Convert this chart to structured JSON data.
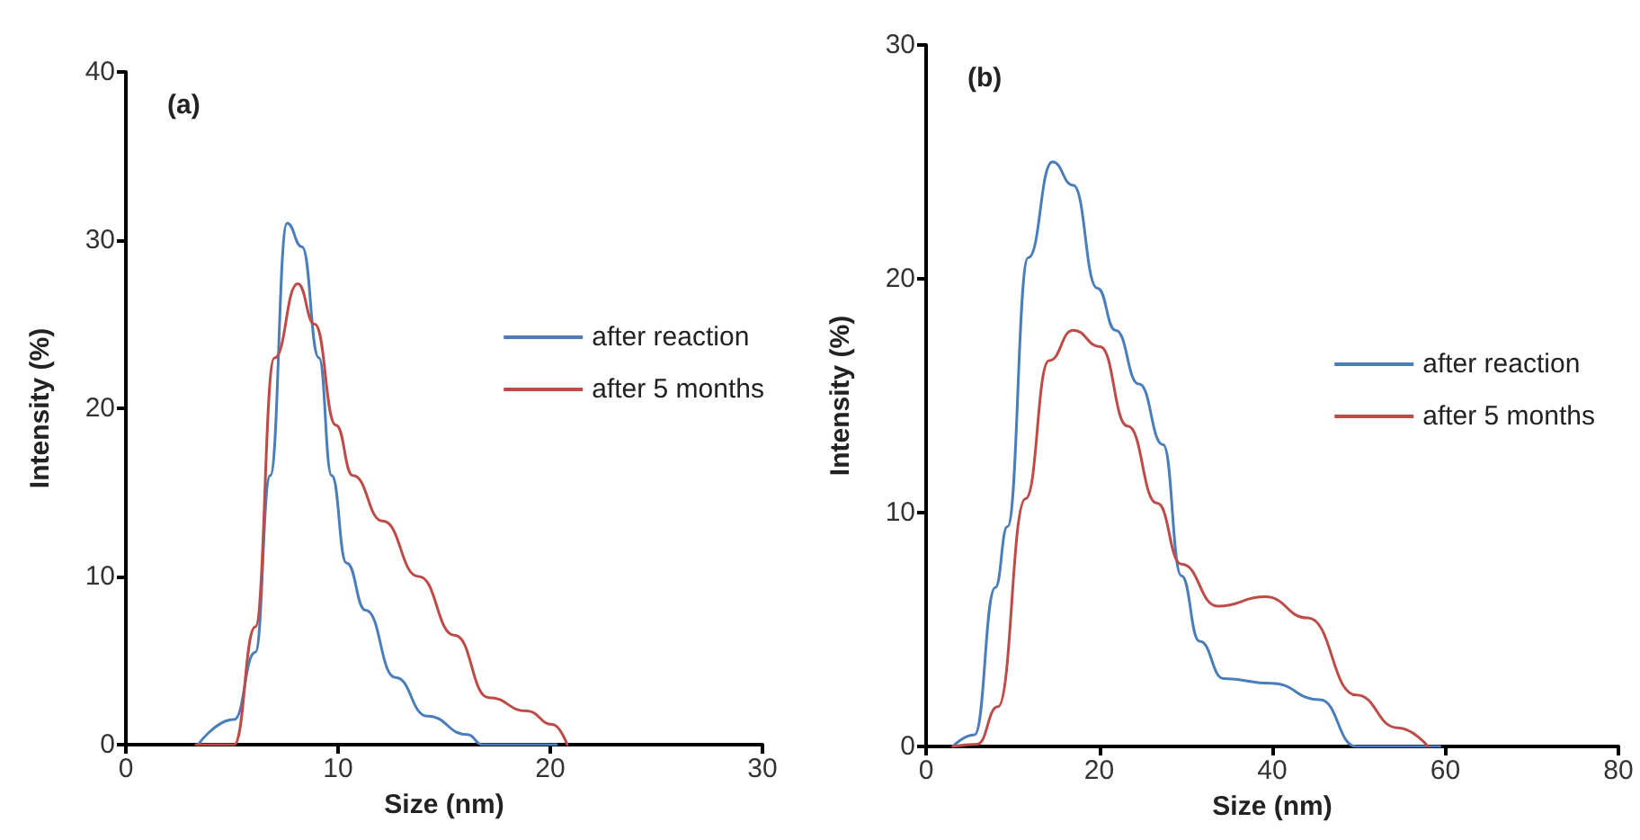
{
  "chart_data": [
    {
      "type": "line",
      "title": "(a)",
      "xlabel": "Size (nm)",
      "ylabel": "Intensity (%)",
      "xlim": [
        0,
        30
      ],
      "xticks": [
        0,
        10,
        20,
        30
      ],
      "ylim": [
        0,
        40
      ],
      "yticks": [
        0,
        10,
        20,
        30,
        40
      ],
      "grid": false,
      "legend": "right",
      "marker": "none",
      "line_style": "solid",
      "series": [
        {
          "name": "after reaction",
          "color": "#4a7ebb",
          "x": [
            3.4,
            5.1,
            6.1,
            6.8,
            7.6,
            8.3,
            9.1,
            9.7,
            10.4,
            11.3,
            12.7,
            14.2,
            16.1,
            16.8,
            20.3
          ],
          "values": [
            0,
            1.5,
            5.5,
            16,
            31,
            29.6,
            23,
            16,
            10.8,
            8,
            4,
            1.7,
            0.6,
            0,
            0
          ]
        },
        {
          "name": "after 5 months",
          "color": "#be4b48",
          "x": [
            3.3,
            5.1,
            6.1,
            7.0,
            8.1,
            8.9,
            9.9,
            10.7,
            12.1,
            13.8,
            15.5,
            17.1,
            18.9,
            20.1,
            20.8
          ],
          "values": [
            0,
            0,
            7,
            23,
            27.4,
            25,
            19,
            16,
            13.3,
            10,
            6.5,
            2.8,
            2,
            1.2,
            0
          ]
        }
      ]
    },
    {
      "type": "line",
      "title": "(b)",
      "xlabel": "Size (nm)",
      "ylabel": "Intensity (%)",
      "xlim": [
        0,
        80
      ],
      "xticks": [
        0,
        20,
        40,
        60,
        80
      ],
      "ylim": [
        0,
        30
      ],
      "yticks": [
        0,
        10,
        20,
        30
      ],
      "grid": false,
      "legend": "right",
      "marker": "none",
      "line_style": "solid",
      "series": [
        {
          "name": "after reaction",
          "color": "#4a7ebb",
          "x": [
            3.1,
            5.6,
            8.0,
            9.4,
            11.8,
            14.6,
            17.0,
            19.8,
            21.9,
            24.6,
            27.4,
            29.5,
            31.6,
            34.4,
            39.9,
            45.5,
            49.7,
            59.4
          ],
          "values": [
            0,
            0.5,
            6.8,
            9.4,
            20.9,
            25,
            24,
            19.6,
            17.8,
            15.5,
            12.9,
            7.3,
            4.5,
            2.9,
            2.7,
            2,
            0,
            0
          ]
        },
        {
          "name": "after 5 months",
          "color": "#be4b48",
          "x": [
            3.1,
            5.9,
            8.3,
            11.5,
            14.2,
            17.0,
            20.1,
            23.3,
            26.7,
            29.5,
            33.7,
            39.2,
            44.1,
            49.7,
            54.5,
            58.0
          ],
          "values": [
            0,
            0.1,
            1.7,
            10.6,
            16.5,
            17.8,
            17.1,
            13.7,
            10.4,
            7.8,
            6,
            6.4,
            5.5,
            2.2,
            0.8,
            0
          ]
        }
      ]
    }
  ]
}
